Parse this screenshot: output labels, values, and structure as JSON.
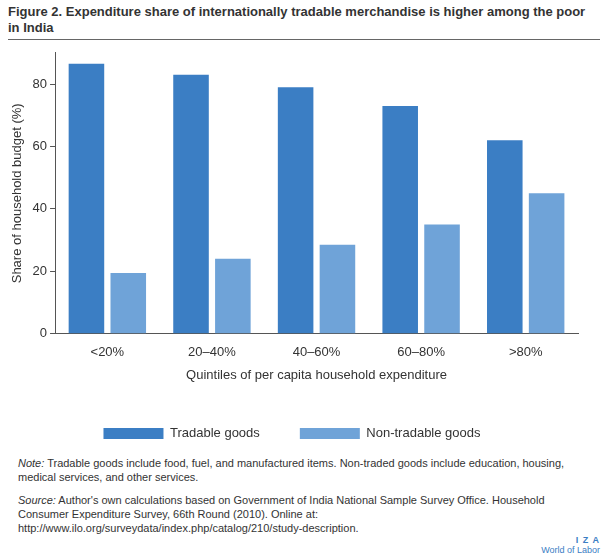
{
  "chart_data": {
    "type": "bar",
    "title": "Figure 2. Expenditure share of internationally tradable merchandise is higher among the poor in India",
    "x_label": "Quintiles of per capita household expenditure",
    "y_label": "Share of household budget (%)",
    "categories": [
      "<20%",
      "20–40%",
      "40–60%",
      "60–80%",
      ">80%"
    ],
    "series": [
      {
        "name": "Tradable goods",
        "color": "#3b7ec4",
        "values": [
          86.5,
          83,
          79,
          73,
          62
        ]
      },
      {
        "name": "Non-tradable goods",
        "color": "#6fa3d8",
        "values": [
          19.5,
          24,
          28.5,
          35,
          45
        ]
      }
    ],
    "ylim": [
      0,
      90
    ],
    "yticks": [
      0,
      20,
      40,
      60,
      80
    ],
    "grid": false,
    "legend": "bottom",
    "annotations": [
      "Note: Tradable goods include food, fuel, and manufactured items. Non-traded goods include education, housing, medical services, and other services.",
      "Source: Author's own calculations based on Government of India National Sample Survey Office. Household Consumer Expenditure Survey, 66th Round (2010). Online at: http://www.ilo.org/surveydata/index.php/catalog/210/study-description.",
      "I Z A",
      "World of Labor"
    ]
  }
}
